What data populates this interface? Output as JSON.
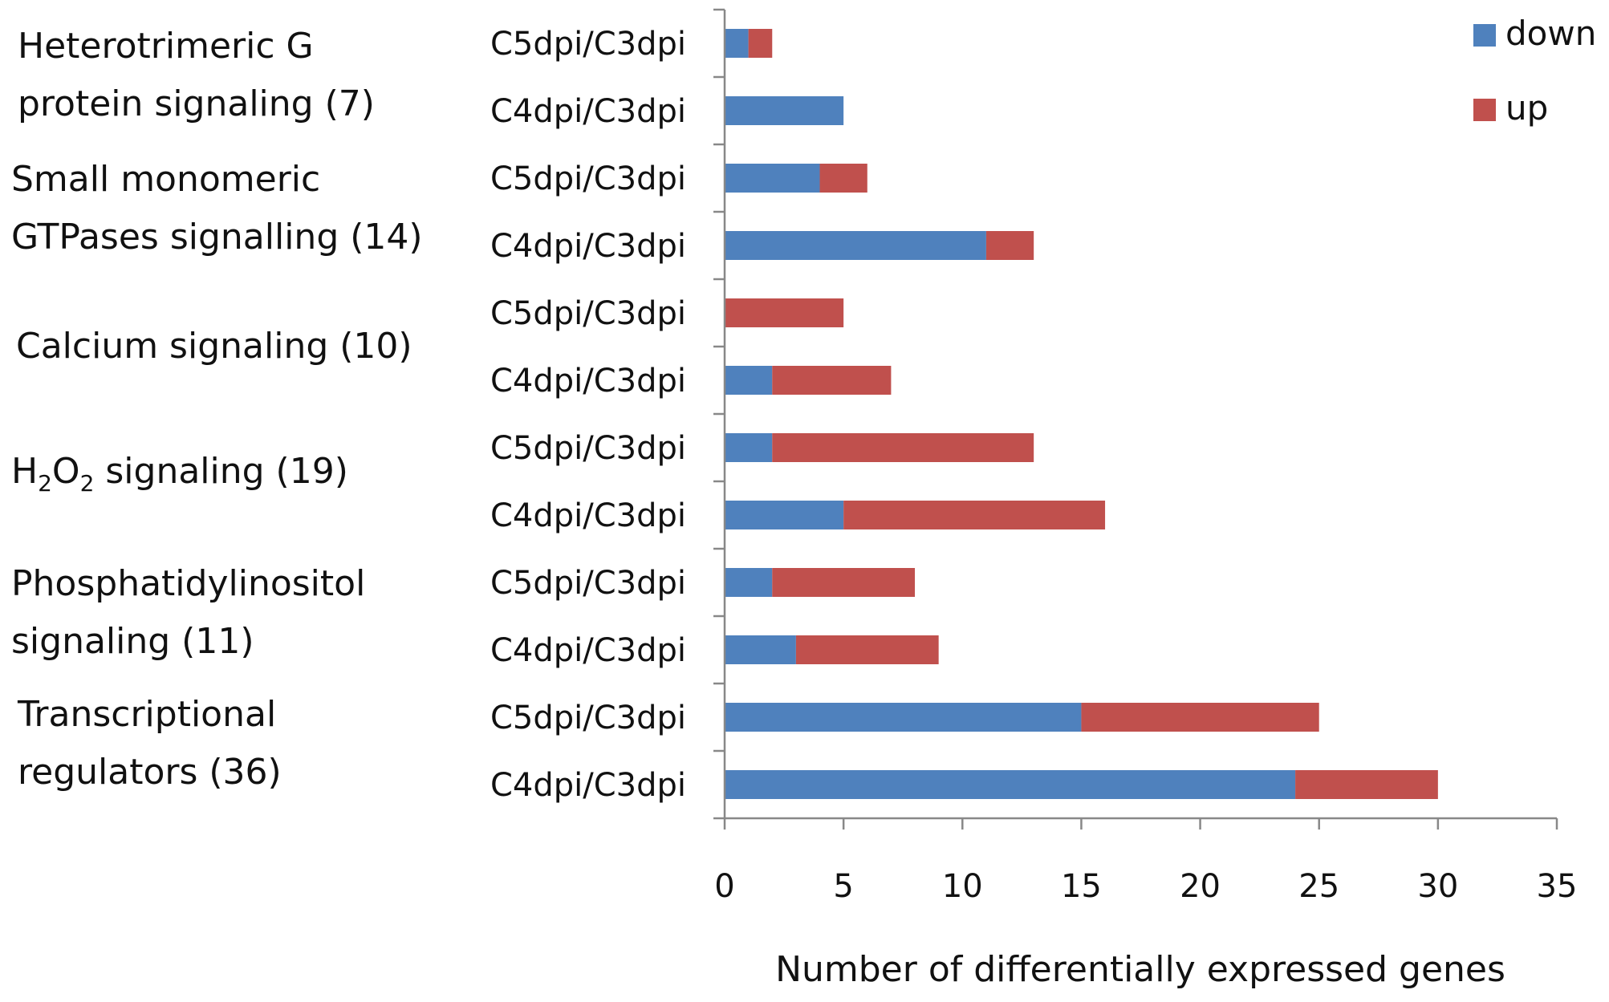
{
  "chart_data": {
    "type": "bar",
    "orientation": "horizontal",
    "stacked": true,
    "title": "",
    "xlabel": "Number of differentially expressed genes",
    "ylabel": "",
    "xlim": [
      0,
      35
    ],
    "xticks": [
      0,
      5,
      10,
      15,
      20,
      25,
      30,
      35
    ],
    "grid": false,
    "legend_position": "top-right",
    "groups": [
      {
        "label": "Heterotrimeric G protein signaling (7)",
        "lines": [
          "Heterotrimeric G",
          "protein signaling (7)"
        ],
        "categories": [
          "C5dpi/C3dpi",
          "C4dpi/C3dpi"
        ]
      },
      {
        "label": "Small monomeric GTPases signalling (14)",
        "lines": [
          "Small monomeric",
          "GTPases signalling (14)"
        ],
        "categories": [
          "C5dpi/C3dpi",
          "C4dpi/C3dpi"
        ]
      },
      {
        "label": "Calcium signaling (10)",
        "lines": [
          "Calcium signaling (10)"
        ],
        "categories": [
          "C5dpi/C3dpi",
          "C4dpi/C3dpi"
        ]
      },
      {
        "label": "H2O2 signaling (19)",
        "lines": [
          "H",
          "2",
          "O",
          "2",
          " signaling (19)"
        ],
        "categories": [
          "C5dpi/C3dpi",
          "C4dpi/C3dpi"
        ]
      },
      {
        "label": "Phosphatidylinositol signaling (11)",
        "lines": [
          "Phosphatidylinositol",
          "signaling (11)"
        ],
        "categories": [
          "C5dpi/C3dpi",
          "C4dpi/C3dpi"
        ]
      },
      {
        "label": "Transcriptional regulators (36)",
        "lines": [
          "Transcriptional",
          "regulators (36)"
        ],
        "categories": [
          "C5dpi/C3dpi",
          "C4dpi/C3dpi"
        ]
      }
    ],
    "categories": [
      "C5dpi/C3dpi",
      "C4dpi/C3dpi",
      "C5dpi/C3dpi",
      "C4dpi/C3dpi",
      "C5dpi/C3dpi",
      "C4dpi/C3dpi",
      "C5dpi/C3dpi",
      "C4dpi/C3dpi",
      "C5dpi/C3dpi",
      "C4dpi/C3dpi",
      "C5dpi/C3dpi",
      "C4dpi/C3dpi"
    ],
    "series": [
      {
        "name": "down",
        "color": "#4f81bd",
        "values": [
          1,
          5,
          4,
          11,
          0,
          2,
          2,
          5,
          2,
          3,
          15,
          24
        ]
      },
      {
        "name": "up",
        "color": "#c0504d",
        "values": [
          1,
          0,
          2,
          2,
          5,
          5,
          11,
          11,
          6,
          6,
          10,
          6
        ]
      }
    ]
  }
}
